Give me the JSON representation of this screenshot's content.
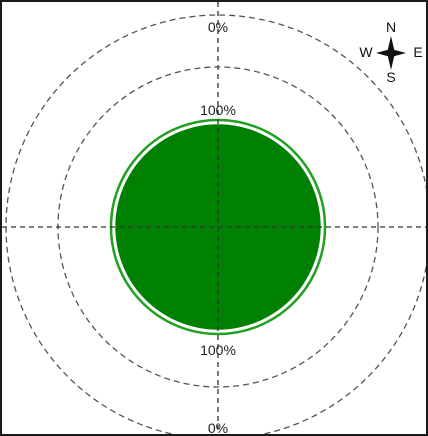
{
  "chart_data": {
    "type": "polar-area",
    "title": "",
    "rings": [
      {
        "value": "100%",
        "ring": "inner"
      },
      {
        "value": "0%",
        "ring": "outer"
      }
    ],
    "ring_labels": {
      "inner_top": "100%",
      "inner_bottom": "100%",
      "outer_top": "0%",
      "outer_bottom": "0%"
    },
    "coverage": {
      "shape": "circle",
      "relative_to_inner_ring": 0.96
    },
    "compass": {
      "north": "N",
      "south": "S",
      "east": "E",
      "west": "W"
    },
    "grid": "dashed crosshair and dashed circles",
    "colors": {
      "fill": "#008000",
      "outline": "#22a022",
      "grid": "#555555"
    }
  }
}
